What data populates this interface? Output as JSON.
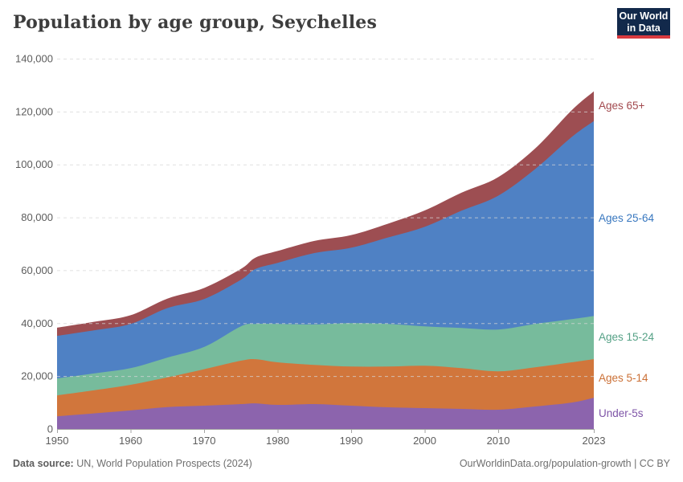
{
  "title": "Population by age group, Seychelles",
  "logo": {
    "line1": "Our World",
    "line2": "in Data",
    "bg": "#12294b",
    "accent": "#d93a3f"
  },
  "footer": {
    "source_label": "Data source:",
    "source_text": " UN, World Population Prospects (2024)",
    "right_text": "OurWorldinData.org/population-growth | CC BY"
  },
  "chart_data": {
    "type": "area",
    "stacked": true,
    "title": "Population by age group, Seychelles",
    "xlabel": "",
    "ylabel": "",
    "xlim": [
      1950,
      2023
    ],
    "ylim": [
      0,
      140000
    ],
    "grid": "dashed-horizontal",
    "legend_position": "right-edge",
    "x": [
      1950,
      1955,
      1960,
      1965,
      1970,
      1975,
      1977,
      1980,
      1985,
      1990,
      1995,
      2000,
      2005,
      2010,
      2015,
      2020,
      2023
    ],
    "xticks": [
      1950,
      1960,
      1970,
      1980,
      1990,
      2000,
      2010,
      2023
    ],
    "xtick_labels": [
      "1950",
      "1960",
      "1970",
      "1980",
      "1990",
      "2000",
      "2010",
      "2023"
    ],
    "yticks": [
      0,
      20000,
      40000,
      60000,
      80000,
      100000,
      120000,
      140000
    ],
    "ytick_labels": [
      "0",
      "20,000",
      "40,000",
      "60,000",
      "80,000",
      "100,000",
      "120,000",
      "140,000"
    ],
    "series": [
      {
        "name": "Under-5s",
        "color": "#8c64ad",
        "label_color": "#7e54a7",
        "values": [
          4800,
          5900,
          7000,
          8300,
          8800,
          9400,
          9700,
          9100,
          9400,
          8800,
          8200,
          7900,
          7600,
          7300,
          8500,
          10000,
          11800
        ]
      },
      {
        "name": "Ages 5-14",
        "color": "#d1763c",
        "label_color": "#cb7036",
        "values": [
          7900,
          8700,
          9700,
          11200,
          13800,
          16400,
          16700,
          16100,
          14800,
          14800,
          15400,
          16000,
          15400,
          14500,
          14800,
          15200,
          14600
        ]
      },
      {
        "name": "Ages 15-24",
        "color": "#77bb9c",
        "label_color": "#55a186",
        "values": [
          6400,
          6400,
          6300,
          7500,
          8400,
          13000,
          13300,
          14500,
          15300,
          16400,
          16100,
          14900,
          15200,
          15800,
          16400,
          16300,
          16300
        ]
      },
      {
        "name": "Ages 25-64",
        "color": "#4f81c4",
        "label_color": "#3877bf",
        "values": [
          16100,
          16300,
          16700,
          18700,
          18100,
          17600,
          20800,
          23100,
          27000,
          28500,
          32700,
          37600,
          44300,
          50600,
          58500,
          68900,
          73700
        ]
      },
      {
        "name": "Ages 65+",
        "color": "#9d4e52",
        "label_color": "#a2494e",
        "values": [
          3100,
          3200,
          3300,
          3600,
          4200,
          4100,
          4300,
          4500,
          4600,
          4800,
          5200,
          6200,
          6800,
          7000,
          7800,
          10100,
          11200
        ]
      }
    ]
  }
}
